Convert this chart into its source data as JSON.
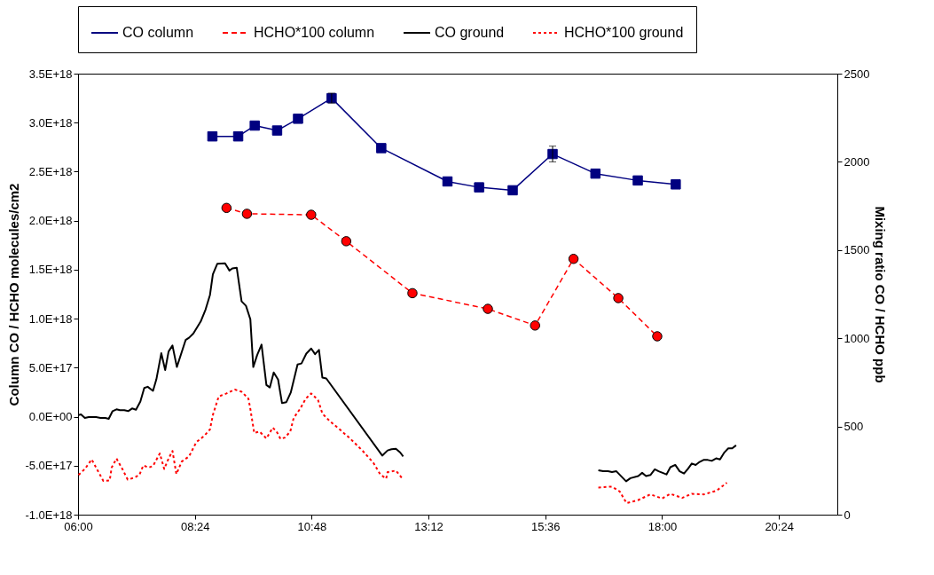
{
  "chart_data": {
    "type": "line",
    "ylabel": "Column CO / HCHO  molecules/cm2",
    "y2label": "Mixing ratio CO  / HCHO    ppb",
    "legend": "top",
    "grid": false,
    "xlim": [
      6,
      21.6
    ],
    "xticks": [
      {
        "value": 6,
        "label": "06:00"
      },
      {
        "value": 8.4,
        "label": "08:24"
      },
      {
        "value": 10.8,
        "label": "10:48"
      },
      {
        "value": 13.2,
        "label": "13:12"
      },
      {
        "value": 15.6,
        "label": "15:36"
      },
      {
        "value": 18,
        "label": "18:00"
      },
      {
        "value": 20.4,
        "label": "20:24"
      }
    ],
    "ylim": [
      -1e+18,
      3.5e+18
    ],
    "yticks": [
      {
        "value": -1e+18,
        "label": "-1.0E+18"
      },
      {
        "value": -5e+17,
        "label": "-5.0E+17"
      },
      {
        "value": 0,
        "label": "0.0E+00"
      },
      {
        "value": 5e+17,
        "label": "5.0E+17"
      },
      {
        "value": 1e+18,
        "label": "1.0E+18"
      },
      {
        "value": 1.5e+18,
        "label": "1.5E+18"
      },
      {
        "value": 2e+18,
        "label": "2.0E+18"
      },
      {
        "value": 2.5e+18,
        "label": "2.5E+18"
      },
      {
        "value": 3e+18,
        "label": "3.0E+18"
      },
      {
        "value": 3.5e+18,
        "label": "3.5E+18"
      }
    ],
    "y2lim": [
      0,
      2500
    ],
    "y2ticks": [
      0,
      500,
      1000,
      1500,
      2000,
      2500
    ],
    "series": [
      {
        "name": "CO column",
        "color": "#000080",
        "marker": "square",
        "line_style": "solid",
        "x": [
          8.76,
          9.29,
          9.63,
          10.09,
          10.52,
          11.21,
          12.23,
          13.59,
          14.24,
          14.93,
          15.75,
          16.63,
          17.5,
          18.28
        ],
        "values": [
          2.86e+18,
          2.86e+18,
          2.97e+18,
          2.92e+18,
          3.04e+18,
          3.25e+18,
          2.74e+18,
          2.4e+18,
          2.34e+18,
          2.31e+18,
          2.68e+18,
          2.48e+18,
          2.41e+18,
          2.37e+18
        ],
        "errors": [
          null,
          null,
          null,
          null,
          null,
          5e+16,
          null,
          null,
          null,
          null,
          8e+16,
          null,
          null,
          null
        ]
      },
      {
        "name": "HCHO*100 column",
        "color": "#ff0000",
        "marker": "circle",
        "line_style": "dashed",
        "x": [
          9.05,
          9.47,
          10.79,
          11.51,
          12.87,
          14.42,
          15.39,
          16.18,
          17.1,
          17.9
        ],
        "values": [
          2.13e+18,
          2.07e+18,
          2.06e+18,
          1.79e+18,
          1.26e+18,
          1.1e+18,
          9.3e+17,
          1.61e+18,
          1.21e+18,
          8.2e+17
        ]
      },
      {
        "name": "CO ground",
        "color": "#000000",
        "marker": "none",
        "line_style": "solid",
        "axis": "y2",
        "x": [
          6.01,
          6.06,
          6.14,
          6.22,
          6.37,
          6.46,
          6.56,
          6.63,
          6.71,
          6.79,
          6.86,
          6.95,
          7.03,
          7.11,
          7.19,
          7.28,
          7.36,
          7.43,
          7.54,
          7.61,
          7.71,
          7.79,
          7.86,
          7.94,
          8.03,
          8.21,
          8.28,
          8.37,
          8.52,
          8.62,
          8.71,
          8.77,
          8.86,
          9.02,
          9.11,
          9.17,
          9.26,
          9.36,
          9.45,
          9.51,
          9.54,
          9.6,
          9.68,
          9.77,
          9.87,
          9.94,
          10.02,
          10.11,
          10.19,
          10.28,
          10.37,
          10.51,
          10.59,
          10.69,
          10.79,
          10.87,
          10.95,
          11.02,
          11.1,
          12.25,
          12.36,
          12.44,
          12.53,
          12.62,
          12.68,
          14.7,
          16.69,
          16.79,
          16.89,
          16.97,
          17.06,
          17.26,
          17.35,
          17.51,
          17.59,
          17.67,
          17.76,
          17.85,
          17.93,
          18.09,
          18.17,
          18.27,
          18.36,
          18.45,
          18.53,
          18.61,
          18.69,
          18.77,
          18.85,
          18.94,
          19.02,
          19.11,
          19.19,
          19.28,
          19.36,
          19.44,
          19.52
        ],
        "values": [
          565,
          568,
          548,
          553,
          553,
          548,
          548,
          543,
          587,
          597,
          592,
          592,
          587,
          602,
          595,
          641,
          718,
          725,
          702,
          768,
          915,
          820,
          925,
          959,
          837,
          990,
          1003,
          1027,
          1095,
          1163,
          1245,
          1363,
          1422,
          1425,
          1384,
          1396,
          1400,
          1209,
          1184,
          1133,
          1107,
          837,
          905,
          964,
          735,
          721,
          806,
          766,
          633,
          638,
          692,
          851,
          857,
          913,
          942,
          910,
          934,
          777,
          772,
          335,
          364,
          371,
          374,
          352,
          330,
          null,
          252,
          246,
          246,
          241,
          246,
          189,
          207,
          219,
          237,
          219,
          225,
          257,
          246,
          228,
          269,
          282,
          246,
          233,
          260,
          290,
          282,
          299,
          310,
          310,
          305,
          319,
          313,
          353,
          376,
          376,
          393
        ]
      },
      {
        "name": "HCHO*100 ground",
        "color": "#ff0000",
        "marker": "none",
        "line_style": "dotted",
        "axis": "y2",
        "x": [
          6.01,
          6.14,
          6.28,
          6.37,
          6.52,
          6.65,
          6.69,
          6.79,
          6.91,
          7.02,
          7.14,
          7.26,
          7.34,
          7.45,
          7.54,
          7.68,
          7.77,
          7.86,
          7.94,
          8.02,
          8.13,
          8.28,
          8.43,
          8.59,
          8.71,
          8.77,
          8.89,
          9.05,
          9.22,
          9.36,
          9.5,
          9.54,
          9.62,
          9.73,
          9.87,
          10.0,
          10.08,
          10.16,
          10.25,
          10.36,
          10.43,
          10.56,
          10.68,
          10.79,
          10.93,
          11.02,
          11.17,
          11.39,
          11.6,
          11.85,
          12.07,
          12.21,
          12.33,
          12.36,
          12.53,
          12.68,
          14.7,
          16.69,
          16.97,
          17.13,
          17.27,
          17.51,
          17.76,
          18.0,
          18.17,
          18.41,
          18.61,
          18.86,
          19.12,
          19.33
        ],
        "values": [
          225,
          259,
          313,
          267,
          191,
          194,
          267,
          318,
          259,
          199,
          208,
          225,
          279,
          267,
          276,
          347,
          259,
          318,
          361,
          230,
          301,
          330,
          411,
          446,
          483,
          565,
          670,
          687,
          709,
          697,
          658,
          599,
          463,
          471,
          432,
          493,
          471,
          429,
          437,
          471,
          548,
          599,
          658,
          687,
          650,
          573,
          531,
          480,
          429,
          361,
          293,
          228,
          204,
          241,
          250,
          199,
          null,
          154,
          159,
          131,
          65,
          83,
          115,
          92,
          118,
          95,
          118,
          115,
          136,
          181
        ]
      }
    ]
  }
}
